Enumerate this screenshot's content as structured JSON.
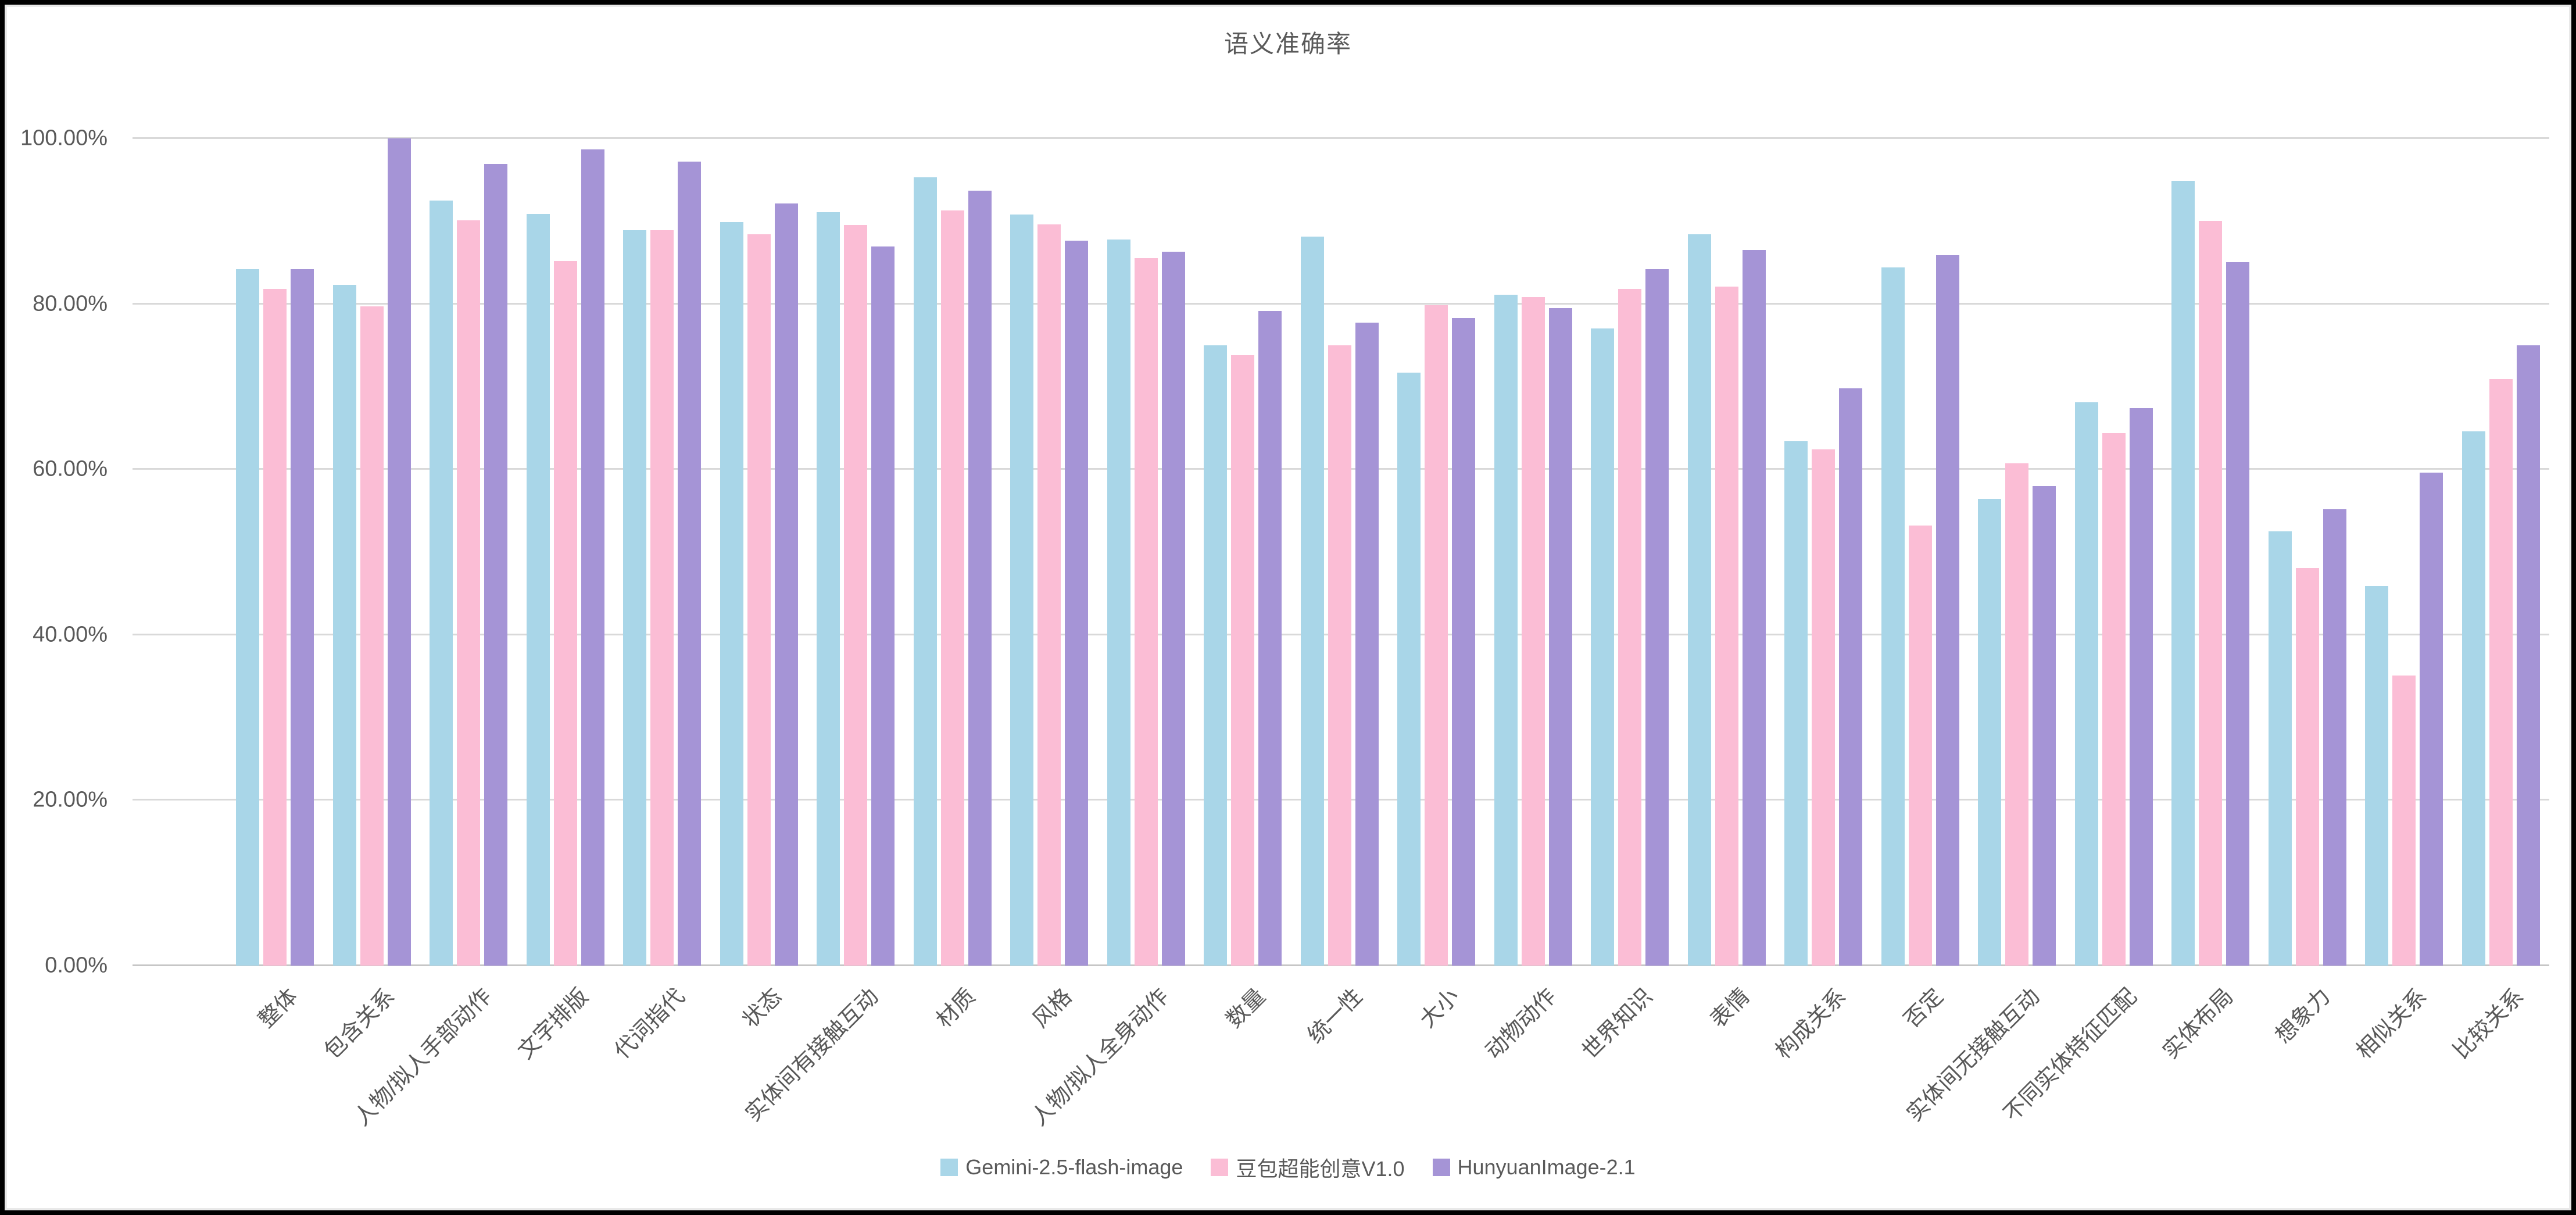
{
  "chart_data": {
    "type": "bar",
    "title": "语义准确率",
    "grid": true,
    "legend_position": "bottom",
    "categories": [
      "整体",
      "包含关系",
      "人物/拟人手部动作",
      "文字排版",
      "代词指代",
      "状态",
      "实体间有接触互动",
      "材质",
      "风格",
      "人物/拟人全身动作",
      "数量",
      "统一性",
      "大小",
      "动物动作",
      "世界知识",
      "表情",
      "构成关系",
      "否定",
      "实体间无接触互动",
      "不同实体特征匹配",
      "实体布局",
      "想象力",
      "相似关系",
      "比较关系"
    ],
    "series": [
      {
        "name": "Gemini-2.5-flash-image",
        "color": "#a9d6e8",
        "values": [
          84.2,
          82.3,
          92.5,
          90.9,
          88.9,
          89.9,
          91.1,
          95.3,
          90.8,
          87.8,
          75.0,
          88.1,
          71.7,
          81.1,
          77.0,
          88.4,
          63.4,
          84.4,
          56.4,
          68.1,
          94.9,
          52.5,
          45.9,
          64.6
        ]
      },
      {
        "name": "豆包超能创意V1.0",
        "color": "#fbbdd5",
        "values": [
          81.8,
          79.7,
          90.1,
          85.2,
          88.9,
          88.4,
          89.5,
          91.3,
          89.6,
          85.5,
          73.8,
          75.0,
          79.8,
          80.8,
          81.8,
          82.1,
          62.4,
          53.2,
          60.7,
          64.4,
          90.0,
          48.1,
          35.1,
          70.9
        ]
      },
      {
        "name": "HunyuanImage-2.1",
        "color": "#a594d6",
        "values": [
          84.2,
          100.0,
          96.9,
          98.7,
          97.2,
          92.1,
          86.9,
          93.7,
          87.6,
          86.3,
          79.1,
          77.7,
          78.3,
          79.5,
          84.2,
          86.5,
          69.8,
          85.9,
          58.0,
          67.4,
          85.0,
          55.2,
          59.6,
          75.0
        ]
      }
    ],
    "y_axis": {
      "min": 0,
      "max": 100,
      "step": 20,
      "ticks": [
        {
          "value": 100,
          "label": "100.00%"
        },
        {
          "value": 80,
          "label": "80.00%"
        },
        {
          "value": 60,
          "label": "60.00%"
        },
        {
          "value": 40,
          "label": "40.00%"
        },
        {
          "value": 20,
          "label": "20.00%"
        },
        {
          "value": 0,
          "label": "0.00%"
        }
      ]
    }
  },
  "styles": {
    "bar_blue": "#a9d6e8",
    "bar_pink": "#fbbdd5",
    "bar_purple": "#a594d6",
    "text_gray": "#595959",
    "gridline_gray": "#d9d9d9",
    "axisline_gray": "#c6c6c6",
    "frame_black": "#000000",
    "background_white": "#ffffff"
  }
}
